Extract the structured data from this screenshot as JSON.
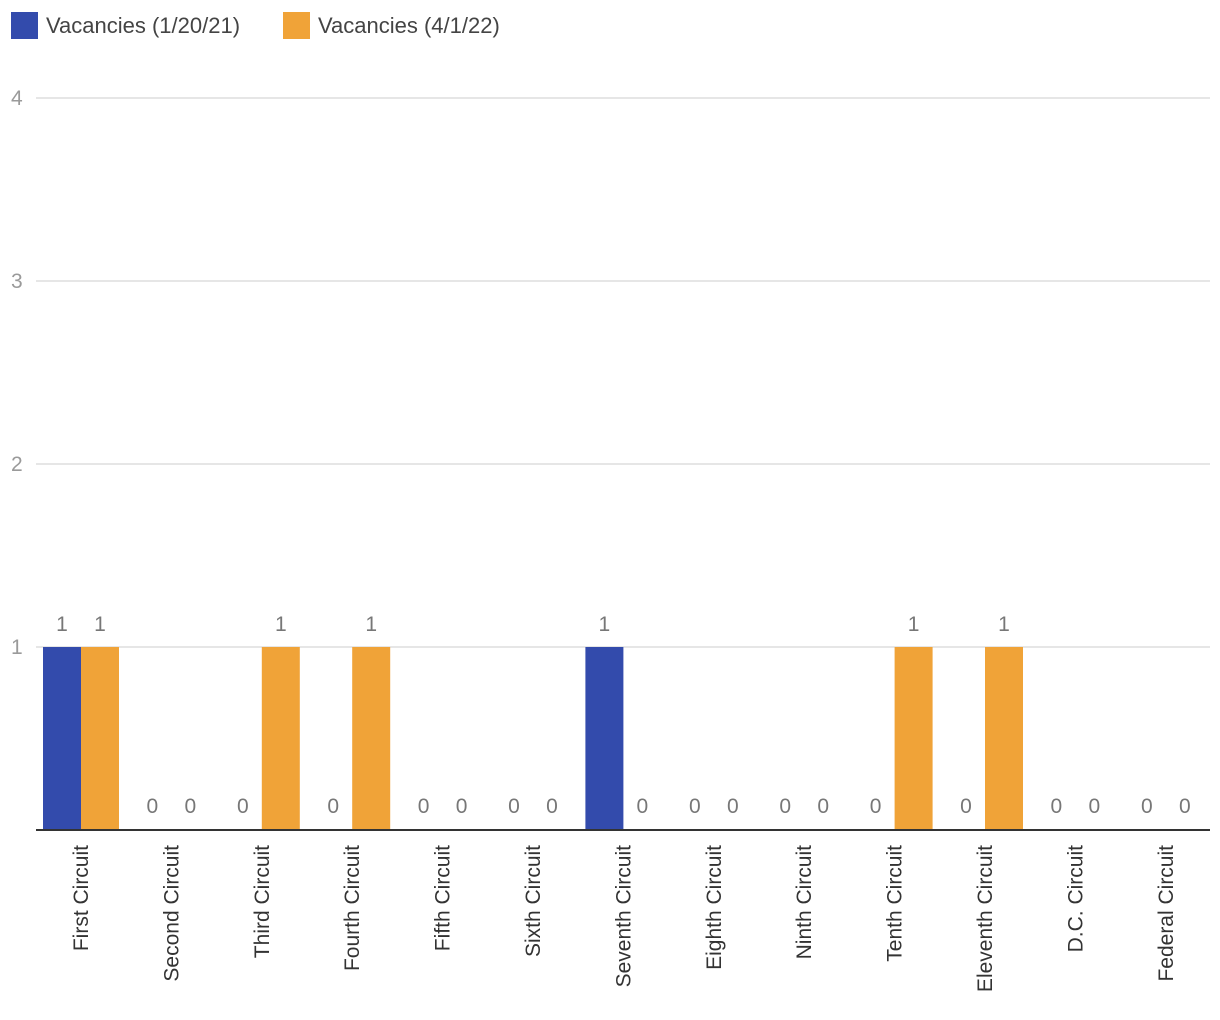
{
  "chart_data": {
    "type": "bar",
    "title": "",
    "xlabel": "",
    "ylabel": "",
    "ylim": [
      0,
      4
    ],
    "yticks": [
      1,
      2,
      3,
      4
    ],
    "grid": true,
    "legend_position": "top-left",
    "categories": [
      "First Circuit",
      "Second Circuit",
      "Third Circuit",
      "Fourth Circuit",
      "Fifth Circuit",
      "Sixth Circuit",
      "Seventh Circuit",
      "Eighth Circuit",
      "Ninth Circuit",
      "Tenth Circuit",
      "Eleventh Circuit",
      "D.C. Circuit",
      "Federal Circuit"
    ],
    "series": [
      {
        "name": "Vacancies (1/20/21)",
        "color": "#334BAC",
        "values": [
          1,
          0,
          0,
          0,
          0,
          0,
          1,
          0,
          0,
          0,
          0,
          0,
          0
        ]
      },
      {
        "name": "Vacancies (4/1/22)",
        "color": "#F0A338",
        "values": [
          1,
          0,
          1,
          1,
          0,
          0,
          0,
          0,
          0,
          1,
          1,
          0,
          0
        ]
      }
    ]
  }
}
